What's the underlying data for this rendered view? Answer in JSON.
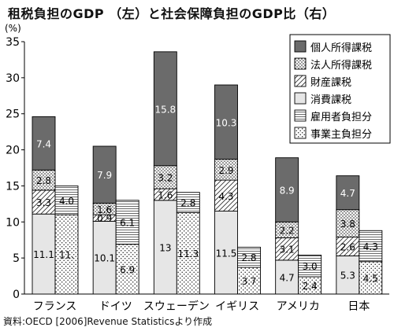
{
  "title": "租税負担のGDP （左）と社会保障負担のGDP比（右）",
  "source": "資料:OECD [2006]Revenue Statisticsより作成",
  "chart_data": {
    "type": "bar",
    "stacked": true,
    "unit_label": "(%)",
    "ylim": [
      0,
      35
    ],
    "yticks": [
      0,
      5,
      10,
      15,
      20,
      25,
      30,
      35
    ],
    "categories": [
      "フランス",
      "ドイツ",
      "スウェーデン",
      "イギリス",
      "アメリカ",
      "日本"
    ],
    "left_stack": {
      "series": [
        {
          "name": "消費課税",
          "pattern": "light",
          "values": [
            11.1,
            10.1,
            13,
            11.5,
            4.7,
            5.3
          ],
          "labels": [
            "11.1",
            "10.1",
            "13",
            "11.5",
            "4.7",
            "5.3"
          ]
        },
        {
          "name": "財産課税",
          "pattern": "diag",
          "values": [
            3.3,
            0.9,
            1.6,
            4.3,
            3.1,
            2.6
          ],
          "labels": [
            "3.3",
            "0.9",
            "1.6",
            "4.3",
            "3.1",
            "2.6"
          ]
        },
        {
          "name": "法人所得課税",
          "pattern": "dotsdark",
          "values": [
            2.8,
            1.6,
            3.2,
            2.9,
            2.2,
            3.8
          ],
          "labels": [
            "2.8",
            "1.6",
            "3.2",
            "2.9",
            "2.2",
            "3.8"
          ]
        },
        {
          "name": "個人所得課税",
          "pattern": "dark",
          "values": [
            7.4,
            7.9,
            15.8,
            10.3,
            8.9,
            4.7
          ],
          "labels": [
            "7.4",
            "7.9",
            "15.8",
            "10.3",
            "8.9",
            "4.7"
          ]
        }
      ]
    },
    "right_stack": {
      "series": [
        {
          "name": "事業主負担分",
          "pattern": "dots",
          "values": [
            11,
            6.9,
            11.3,
            3.7,
            2.4,
            4.5
          ],
          "labels": [
            "11.",
            "6.9",
            "11.3",
            "3.7",
            "2.4",
            "4.5"
          ]
        },
        {
          "name": "雇用者負担分",
          "pattern": "hlines",
          "values": [
            4.0,
            6.1,
            2.8,
            2.8,
            3.0,
            4.3
          ],
          "labels": [
            "4.0",
            "6.1",
            "2.8",
            "2.8",
            "3.0",
            "4.3"
          ]
        }
      ]
    },
    "legend": {
      "placement": "top-right",
      "items": [
        {
          "name": "個人所得課税",
          "pattern": "dark"
        },
        {
          "name": "法人所得課税",
          "pattern": "dotsdark"
        },
        {
          "name": "財産課税",
          "pattern": "diag"
        },
        {
          "name": "消費課税",
          "pattern": "light"
        },
        {
          "name": "雇用者負担分",
          "pattern": "hlines"
        },
        {
          "name": "事業主負担分",
          "pattern": "dots"
        }
      ]
    }
  }
}
